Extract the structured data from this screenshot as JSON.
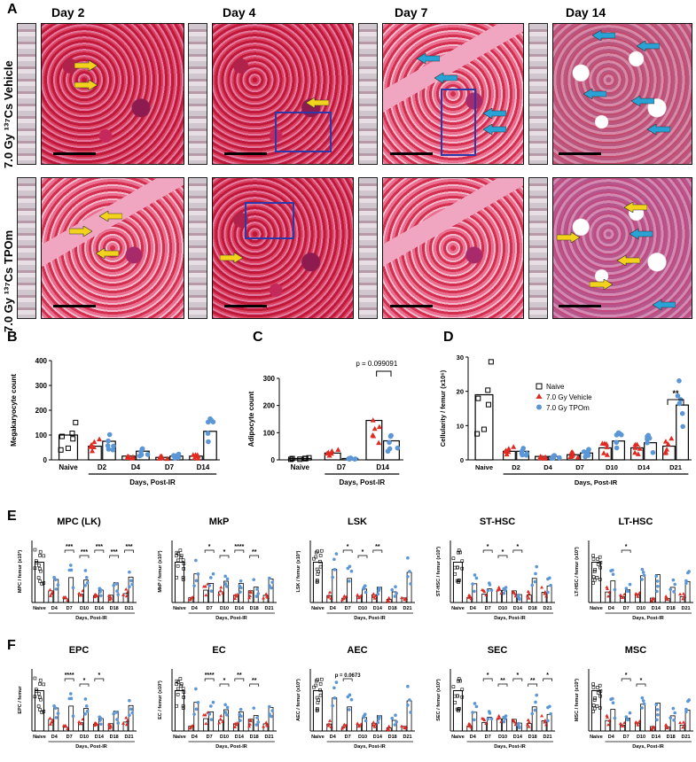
{
  "panel_labels": {
    "A": "A",
    "B": "B",
    "C": "C",
    "D": "D",
    "E": "E",
    "F": "F"
  },
  "panelA": {
    "days": [
      "Day 2",
      "Day 4",
      "Day 7",
      "Day 14"
    ],
    "rows": [
      {
        "label": "7.0 Gy ¹³⁷Cs Vehicle"
      },
      {
        "label": "7.0 Gy ¹³⁷Cs TPOm"
      }
    ],
    "colors": {
      "yellow_arrow": "#f2d21b",
      "blue_arrow": "#29a3d6",
      "box": "#2b3aa8"
    }
  },
  "chart_data": [
    {
      "id": "B",
      "type": "bar",
      "ylabel": "Megakaryocyte count",
      "xlabel": "Days, Post-IR",
      "ylim": [
        0,
        400
      ],
      "yticks": [
        0,
        100,
        200,
        300,
        400
      ],
      "categories": [
        "Naive",
        "D2",
        "D4",
        "D7",
        "D14"
      ],
      "series": [
        {
          "name": "Naive",
          "values": [
            100,
            null,
            null,
            null,
            null
          ]
        },
        {
          "name": "7.0 Gy Vehicle",
          "values": [
            null,
            55,
            15,
            10,
            15
          ]
        },
        {
          "name": "7.0 Gy TPOm",
          "values": [
            null,
            75,
            35,
            15,
            115
          ]
        }
      ]
    },
    {
      "id": "C",
      "type": "bar",
      "ylabel": "Adipocyte count",
      "xlabel": "Days, Post-IR",
      "ylim": [
        0,
        300
      ],
      "yticks": [
        0,
        100,
        200,
        300
      ],
      "categories": [
        "Naive",
        "D7",
        "D14"
      ],
      "annotation": "p = 0.099091",
      "series": [
        {
          "name": "Naive",
          "values": [
            5,
            null,
            null
          ]
        },
        {
          "name": "7.0 Gy Vehicle",
          "values": [
            null,
            25,
            145
          ]
        },
        {
          "name": "7.0 Gy TPOm",
          "values": [
            null,
            5,
            70
          ]
        }
      ]
    },
    {
      "id": "D",
      "type": "bar",
      "ylabel": "Cellularity / femur (x10⁶)",
      "xlabel": "Days, Post-IR",
      "ylim": [
        0,
        30
      ],
      "yticks": [
        0,
        10,
        20,
        30
      ],
      "categories": [
        "Naive",
        "D2",
        "D4",
        "D7",
        "D10",
        "D14",
        "D21"
      ],
      "annotation": "**",
      "legend": [
        "Naive",
        "7.0 Gy Vehicle",
        "7.0 Gy TPOm"
      ],
      "series": [
        {
          "name": "Naive",
          "values": [
            19,
            null,
            null,
            null,
            null,
            null,
            null
          ]
        },
        {
          "name": "7.0 Gy Vehicle",
          "values": [
            null,
            2.5,
            1,
            1.5,
            3.5,
            3.5,
            4
          ]
        },
        {
          "name": "7.0 Gy TPOm",
          "values": [
            null,
            2.5,
            1,
            2,
            5.5,
            5,
            16
          ]
        }
      ]
    }
  ],
  "row_E": [
    {
      "title": "MPC (LK)",
      "ylabel": "MPC / femur (x10³)",
      "sig": [
        "***",
        "***",
        "***",
        "***",
        "***"
      ]
    },
    {
      "title": "MkP",
      "ylabel": "MkP / femur (x10³)",
      "sig": [
        "*",
        "*",
        "****",
        "**"
      ]
    },
    {
      "title": "LSK",
      "ylabel": "LSK / femur (x10³)",
      "sig": [
        "*",
        "*",
        "**"
      ]
    },
    {
      "title": "ST-HSC",
      "ylabel": "ST-HSC / femur (x10³)",
      "sig": [
        "*",
        "*",
        "*"
      ]
    },
    {
      "title": "LT-HSC",
      "ylabel": "LT-HSC / femur (x10³)",
      "sig": [
        "*"
      ]
    }
  ],
  "row_F": [
    {
      "title": "EPC",
      "ylabel": "EPC / femur",
      "sig": [
        "****",
        "*",
        "*"
      ]
    },
    {
      "title": "EC",
      "ylabel": "EC / femur (x10³)",
      "sig": [
        "****",
        "*",
        "**",
        "**"
      ]
    },
    {
      "title": "AEC",
      "ylabel": "AEC / femur (x10³)",
      "sig": [
        "p = 0.0673"
      ]
    },
    {
      "title": "SEC",
      "ylabel": "SEC / femur (x10³)",
      "sig": [
        "*",
        "**",
        "*",
        "**",
        "*"
      ]
    },
    {
      "title": "MSC",
      "ylabel": "MSC / femur (x10³)",
      "sig": [
        "*",
        "*"
      ]
    }
  ],
  "small_xcats": [
    "Naive",
    "D4",
    "D7",
    "D10",
    "D14",
    "D18",
    "D21"
  ],
  "small_xlabel": "Days, Post-IR"
}
